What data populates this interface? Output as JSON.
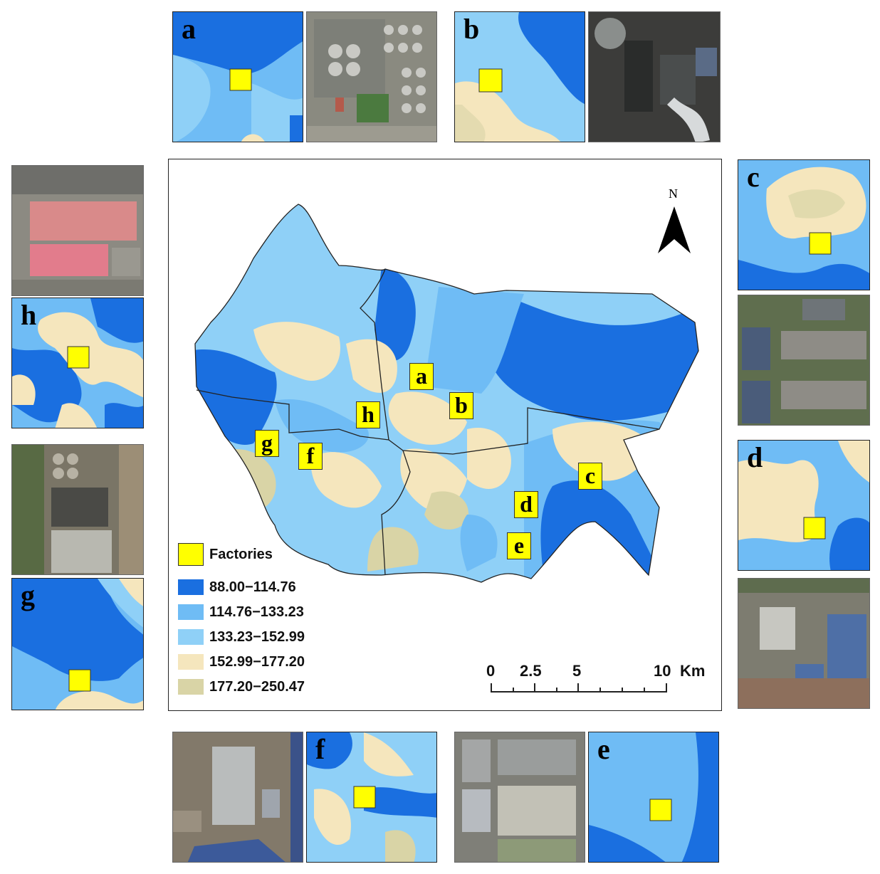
{
  "legend": {
    "factories_label": "Factories",
    "classes": [
      {
        "label": "88.00−114.76",
        "color": "#1a6fe0"
      },
      {
        "label": "114.76−133.23",
        "color": "#6fbcf5"
      },
      {
        "label": "133.23−152.99",
        "color": "#8fd0f7"
      },
      {
        "label": "152.99−177.20",
        "color": "#f5e6bd"
      },
      {
        "label": "177.20−250.47",
        "color": "#d9d4a6"
      }
    ]
  },
  "scale_bar": {
    "ticks": [
      "0",
      "2.5",
      "5",
      "10"
    ],
    "unit": "Km"
  },
  "north_arrow": {
    "label": "N"
  },
  "factory_color": "#ffff00",
  "map_labels": [
    "a",
    "b",
    "c",
    "d",
    "e",
    "f",
    "g",
    "h"
  ],
  "insets": {
    "a": "a",
    "b": "b",
    "c": "c",
    "d": "d",
    "e": "e",
    "f": "f",
    "g": "g",
    "h": "h"
  }
}
